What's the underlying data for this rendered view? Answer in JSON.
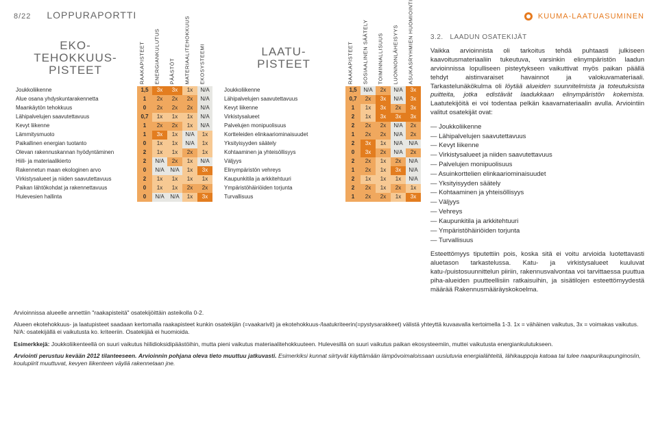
{
  "header": {
    "page_number": "8/22",
    "title": "LOPPURAPORTTI",
    "brand": "KUUMA-LAATUASUMINEN"
  },
  "table_eko": {
    "title_lines": [
      "EKO-",
      "TEHOKKUUS-",
      "PISTEET"
    ],
    "columns": [
      "RAAKAPISTEET",
      "ENERGIANKULUTUS",
      "PÄÄSTÖT",
      "MATERIAALITEHOKKUUS",
      "EKOSYSTEEMI"
    ],
    "rows": [
      {
        "label": "Joukkoliikenne",
        "cells": [
          "1,5",
          "3x",
          "3x",
          "1x",
          "N/A"
        ]
      },
      {
        "label": "Alue osana yhdyskuntarakennetta",
        "cells": [
          "1",
          "2x",
          "2x",
          "2x",
          "N/A"
        ]
      },
      {
        "label": "Maankäytön tehokkuus",
        "cells": [
          "0",
          "2x",
          "2x",
          "2x",
          "N/A"
        ]
      },
      {
        "label": "Lähipalvelujen saavutettavuus",
        "cells": [
          "0,7",
          "1x",
          "1x",
          "1x",
          "N/A"
        ]
      },
      {
        "label": "Kevyt liikenne",
        "cells": [
          "1",
          "2x",
          "2x",
          "1x",
          "N/A"
        ]
      },
      {
        "label": "Lämmitysmuoto",
        "cells": [
          "1",
          "3x",
          "1x",
          "N/A",
          "1x"
        ]
      },
      {
        "label": "Paikallinen energian tuotanto",
        "cells": [
          "0",
          "1x",
          "1x",
          "N/A",
          "1x"
        ]
      },
      {
        "label": "Olevan rakennuskannan hyödyntäminen",
        "cells": [
          "2",
          "1x",
          "1x",
          "2x",
          "1x"
        ]
      },
      {
        "label": "Hiili- ja materiaalikierto",
        "cells": [
          "2",
          "N/A",
          "2x",
          "1x",
          "N/A"
        ]
      },
      {
        "label": "Rakennetun maan ekologinen arvo",
        "cells": [
          "0",
          "N/A",
          "N/A",
          "1x",
          "3x"
        ]
      },
      {
        "label": "Virkistysalueet ja niiden saavutettavuus",
        "cells": [
          "2",
          "1x",
          "1x",
          "1x",
          "1x"
        ]
      },
      {
        "label": "Paikan lähtökohdat ja rakennettavuus",
        "cells": [
          "0",
          "1x",
          "1x",
          "2x",
          "2x"
        ]
      },
      {
        "label": "Hulevesien hallinta",
        "cells": [
          "0",
          "N/A",
          "N/A",
          "1x",
          "3x"
        ]
      }
    ]
  },
  "table_laatu": {
    "title_lines": [
      "LAATU-",
      "PISTEET"
    ],
    "columns": [
      "RAAKAPISTEET",
      "SOSIAALINEN SÄÄTELY",
      "TOIMINNALLISUUS",
      "LUONNONLÄHEISYYS",
      "ASUKASRYHMIEN HUOMIOINTI"
    ],
    "rows": [
      {
        "label": "Joukkoliikenne",
        "cells": [
          "1,5",
          "N/A",
          "2x",
          "N/A",
          "3x"
        ]
      },
      {
        "label": "Lähipalvelujen saavutettavuus",
        "cells": [
          "0,7",
          "2x",
          "3x",
          "N/A",
          "3x"
        ]
      },
      {
        "label": "Kevyt liikenne",
        "cells": [
          "1",
          "1x",
          "3x",
          "2x",
          "3x"
        ]
      },
      {
        "label": "Virkistysalueet",
        "cells": [
          "2",
          "1x",
          "3x",
          "3x",
          "3x"
        ]
      },
      {
        "label": "Palvelujen monipuolisuus",
        "cells": [
          "2",
          "2x",
          "2x",
          "N/A",
          "2x"
        ]
      },
      {
        "label": "Kortteleiden elinkaariominaisuudet",
        "cells": [
          "1",
          "2x",
          "2x",
          "N/A",
          "2x"
        ]
      },
      {
        "label": "Yksityisyyden säätely",
        "cells": [
          "2",
          "3x",
          "1x",
          "N/A",
          "N/A"
        ]
      },
      {
        "label": "Kohtaaminen ja yhteisöllisyys",
        "cells": [
          "0",
          "3x",
          "2x",
          "N/A",
          "2x"
        ]
      },
      {
        "label": "Väljyys",
        "cells": [
          "2",
          "2x",
          "1x",
          "2x",
          "N/A"
        ]
      },
      {
        "label": "Elinympäristön vehreys",
        "cells": [
          "1",
          "2x",
          "1x",
          "3x",
          "N/A"
        ]
      },
      {
        "label": "Kaupunkitila ja arkkitehtuuri",
        "cells": [
          "2",
          "1x",
          "1x",
          "1x",
          "N/A"
        ]
      },
      {
        "label": "Ympäristöhäiriöiden torjunta",
        "cells": [
          "2",
          "2x",
          "1x",
          "2x",
          "1x"
        ]
      },
      {
        "label": "Turvallisuus",
        "cells": [
          "1",
          "2x",
          "2x",
          "1x",
          "3x"
        ]
      }
    ]
  },
  "footnotes": {
    "p1": "Arvioinnissa alueelle annettiin \"raakapisteitä\" osatekijöittäin asteikolla 0-2.",
    "p2": "Alueen ekotehokkuus- ja laatupisteet saadaan kertomalla raakapisteet kunkin osatekijän (=vaakarivit) ja ekotehokkuus-/laatukriteerin(=pystysarakkeet) välistä yhteyttä kuvaavalla kertoimella 1-3. 1x = vähäinen vaikutus, 3x = voimakas vaikutus.",
    "p3": "N/A: osatekijällä ei vaikutusta ko. kriteeriin. Osatekijää ei huomioida.",
    "p4_bold": "Esimerkkejä:",
    "p4_rest": " Joukkoliikenteellä on suuri vaikutus hiilidioksidipäästöihin, mutta pieni vaikutus materiaalitehokkuuteen. Hulevesillä on suuri vaikutus paikan ekosysteemiin, muttei vaikutusta energiankulutukseen.",
    "p5_b1": "Arviointi perustuu kevään 2012 tilanteeseen.",
    "p5_b2": " Arvioinnin pohjana oleva tieto muuttuu jatkuvasti.",
    "p5_rest": " Esimerkiksi kunnat siirtyvät käyttämään lämpövoimaloissaan uusiutuvia energialähteitä, lähikauppoja katoaa tai tulee naapurikaupunginosiin, koulupiirit muuttuvat, kevyen liikenteen väyliä rakennetaan jne."
  },
  "right": {
    "section_no": "3.2.",
    "section_title": "LAADUN OSATEKIJÄT",
    "para1a": "Vaikka arvioinnista oli tarkoitus tehdä puhtaasti julkiseen kaavoitusmateriaaliin tukeutuva, varsinkin elinympäristön laadun arvioinnissa lopulliseen pisteytykseen vaikuttivat myös paikan päällä tehdyt aistinvaraiset havainnot ja valokuvamateriaali. Tarkastelunäkökulma oli ",
    "para1_em": "löytää alueiden suunnitelmista ja toteutuksista puitteita, jotka edistävät laadukkaan elinympäristön kokemista.",
    "para1b": " Laatutekijöitä ei voi todentaa pelkän kaavamateriaalin avulla. Arviointiin valitut osatekijät ovat:",
    "bullets": [
      "Joukkoliikenne",
      "Lähipalvelujen saavutettavuus",
      "Kevyt liikenne",
      "Virkistysalueet ja niiden saavutettavuus",
      "Palvelujen monipuolisuus",
      "Asuinkorttelien elinkaariominaisuudet",
      "Yksityisyyden säätely",
      "Kohtaaminen ja yhteisöllisyys",
      "Väljyys",
      "Vehreys",
      "Kaupunkitila ja arkkitehtuuri",
      "Ympäristöhäiriöiden torjunta",
      "Turvallisuus"
    ],
    "para2": "Esteettömyys tiputettiin pois, koska sitä ei voitu arvioida luotettavasti aluetason tarkastelussa. Katu- ja virkistysalueet kuuluvat katu-/puistosuunnittelun piiriin, rakennusvalvontaa voi tarvittaessa puuttua piha-alueiden puutteellisiin ratkaisuihin, ja sisätilojen esteettömyydestä määrää Rakennusmääräyskokoelma."
  },
  "colors": {
    "na": "#e7e7e3",
    "x1": "#f7c993",
    "x2": "#f0a85e",
    "x3": "#e37d1f"
  }
}
